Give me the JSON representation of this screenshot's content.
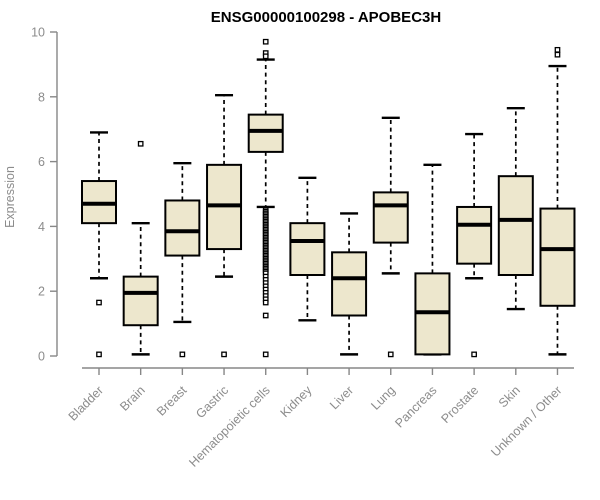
{
  "title": "ENSG00000100298 - APOBEC3H",
  "colors": {
    "box_fill": "#EDE7CD",
    "box_stroke": "#000000",
    "median": "#000000",
    "whisker": "#000000",
    "axis_line": "#878787",
    "tick_label": "#8C8C8C",
    "title_color": "#000000",
    "background": "#FFFFFF"
  },
  "chart_data": {
    "type": "boxplot",
    "title": "ENSG00000100298 - APOBEC3H",
    "xlabel": "",
    "ylabel": "Expression",
    "ylim": [
      0,
      10
    ],
    "yticks": [
      0,
      2,
      4,
      6,
      8,
      10
    ],
    "grid": false,
    "legend": "none",
    "x_tick_rotation_deg": 45,
    "categories": [
      "Bladder",
      "Brain",
      "Breast",
      "Gastric",
      "Hematopoietic cells",
      "Kidney",
      "Liver",
      "Lung",
      "Pancreas",
      "Prostate",
      "Skin",
      "Unknown / Other"
    ],
    "boxes": [
      {
        "category": "Bladder",
        "whisker_low": 2.4,
        "q1": 4.1,
        "median": 4.7,
        "q3": 5.4,
        "whisker_high": 6.9,
        "outliers": [
          1.65,
          0.05
        ]
      },
      {
        "category": "Brain",
        "whisker_low": 0.05,
        "q1": 0.95,
        "median": 1.95,
        "q3": 2.45,
        "whisker_high": 4.1,
        "outliers": [
          6.55
        ]
      },
      {
        "category": "Breast",
        "whisker_low": 1.05,
        "q1": 3.1,
        "median": 3.85,
        "q3": 4.8,
        "whisker_high": 5.95,
        "outliers": [
          0.05
        ]
      },
      {
        "category": "Gastric",
        "whisker_low": 2.45,
        "q1": 3.3,
        "median": 4.65,
        "q3": 5.9,
        "whisker_high": 8.05,
        "outliers": [
          0.05
        ]
      },
      {
        "category": "Hematopoietic cells",
        "whisker_low": 4.6,
        "q1": 6.3,
        "median": 6.95,
        "q3": 7.45,
        "whisker_high": 9.15,
        "outliers": [
          9.7,
          9.35,
          9.25,
          4.5,
          4.45,
          4.4,
          4.35,
          4.3,
          4.25,
          4.2,
          4.15,
          4.1,
          4.05,
          4.0,
          3.95,
          3.9,
          3.85,
          3.8,
          3.75,
          3.7,
          3.65,
          3.6,
          3.55,
          3.5,
          3.45,
          3.4,
          3.35,
          3.3,
          3.25,
          3.2,
          3.15,
          3.1,
          3.05,
          3.0,
          2.95,
          2.9,
          2.85,
          2.8,
          2.75,
          2.7,
          2.65,
          2.6,
          2.55,
          2.45,
          2.35,
          2.25,
          2.15,
          2.05,
          1.95,
          1.85,
          1.75,
          1.65,
          1.25,
          0.05
        ]
      },
      {
        "category": "Kidney",
        "whisker_low": 1.1,
        "q1": 2.5,
        "median": 3.55,
        "q3": 4.1,
        "whisker_high": 5.5,
        "outliers": []
      },
      {
        "category": "Liver",
        "whisker_low": 0.05,
        "q1": 1.25,
        "median": 2.4,
        "q3": 3.2,
        "whisker_high": 4.4,
        "outliers": []
      },
      {
        "category": "Lung",
        "whisker_low": 2.55,
        "q1": 3.5,
        "median": 4.65,
        "q3": 5.05,
        "whisker_high": 7.35,
        "outliers": [
          0.05
        ]
      },
      {
        "category": "Pancreas",
        "whisker_low": 0.05,
        "q1": 0.05,
        "median": 1.35,
        "q3": 2.55,
        "whisker_high": 5.9,
        "outliers": []
      },
      {
        "category": "Prostate",
        "whisker_low": 2.4,
        "q1": 2.85,
        "median": 4.05,
        "q3": 4.6,
        "whisker_high": 6.85,
        "outliers": [
          0.05
        ]
      },
      {
        "category": "Skin",
        "whisker_low": 1.45,
        "q1": 2.5,
        "median": 4.2,
        "q3": 5.55,
        "whisker_high": 7.65,
        "outliers": []
      },
      {
        "category": "Unknown / Other",
        "whisker_low": 0.05,
        "q1": 1.55,
        "median": 3.3,
        "q3": 4.55,
        "whisker_high": 8.95,
        "outliers": [
          9.45,
          9.3
        ]
      }
    ]
  }
}
